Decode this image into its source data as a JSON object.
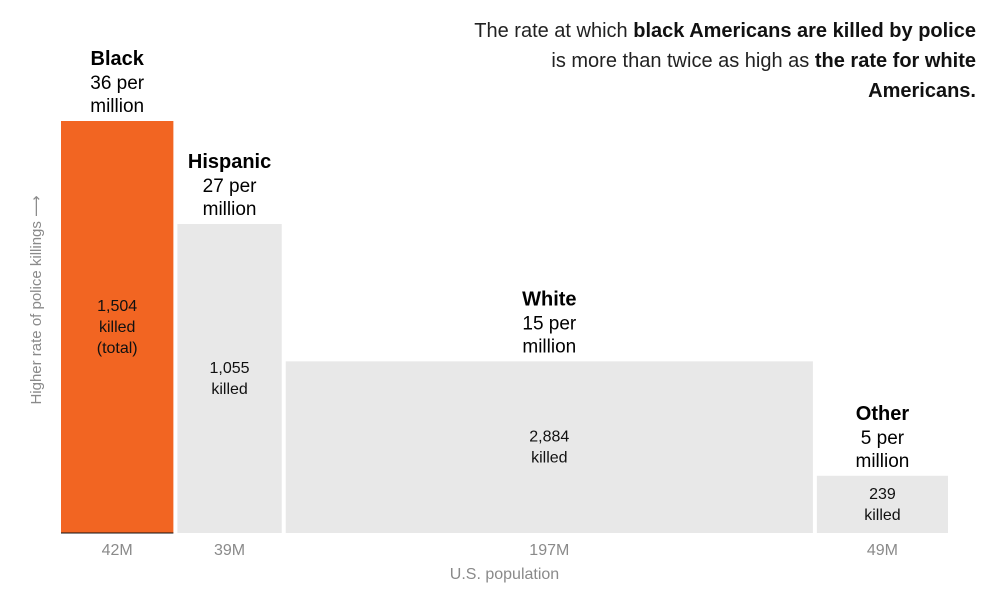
{
  "headline": {
    "part1": "The rate at which ",
    "bold1": "black Americans are killed by police",
    "part2": " is more than twice as high as ",
    "bold2": "the rate for white Americans."
  },
  "chart_data": {
    "type": "bar",
    "subtype": "variable-width (marimekko)",
    "title": "The rate at which black Americans are killed by police is more than twice as high as the rate for white Americans.",
    "ylabel": "Higher rate of police killings ⟶",
    "xlabel": "U.S. population",
    "ylim": [
      0,
      36
    ],
    "grid": false,
    "categories": [
      "Black",
      "Hispanic",
      "White",
      "Other"
    ],
    "series": [
      {
        "name": "Rate per million",
        "values": [
          36,
          27,
          15,
          5
        ]
      },
      {
        "name": "Population (millions)",
        "values": [
          42,
          39,
          197,
          49
        ]
      },
      {
        "name": "Killed",
        "values": [
          1504,
          1055,
          2884,
          239
        ]
      }
    ],
    "bars": [
      {
        "name": "Black",
        "rate": 36,
        "population_m": 42,
        "killed": 1504,
        "rate_label": [
          "36 per",
          "million"
        ],
        "inner_label": [
          "1,504",
          "killed",
          "(total)"
        ],
        "pop_label": "42M",
        "color": "#f26522"
      },
      {
        "name": "Hispanic",
        "rate": 27,
        "population_m": 39,
        "killed": 1055,
        "rate_label": [
          "27 per",
          "million"
        ],
        "inner_label": [
          "1,055",
          "killed"
        ],
        "pop_label": "39M",
        "color": "#e8e8e8"
      },
      {
        "name": "White",
        "rate": 15,
        "population_m": 197,
        "killed": 2884,
        "rate_label": [
          "15 per",
          "million"
        ],
        "inner_label": [
          "2,884",
          "killed"
        ],
        "pop_label": "197M",
        "color": "#e8e8e8"
      },
      {
        "name": "Other",
        "rate": 5,
        "population_m": 49,
        "killed": 239,
        "rate_label": [
          "5 per",
          "million"
        ],
        "inner_label": [
          "239",
          "killed"
        ],
        "pop_label": "49M",
        "color": "#e8e8e8"
      }
    ],
    "baseline_color": "#111111"
  }
}
